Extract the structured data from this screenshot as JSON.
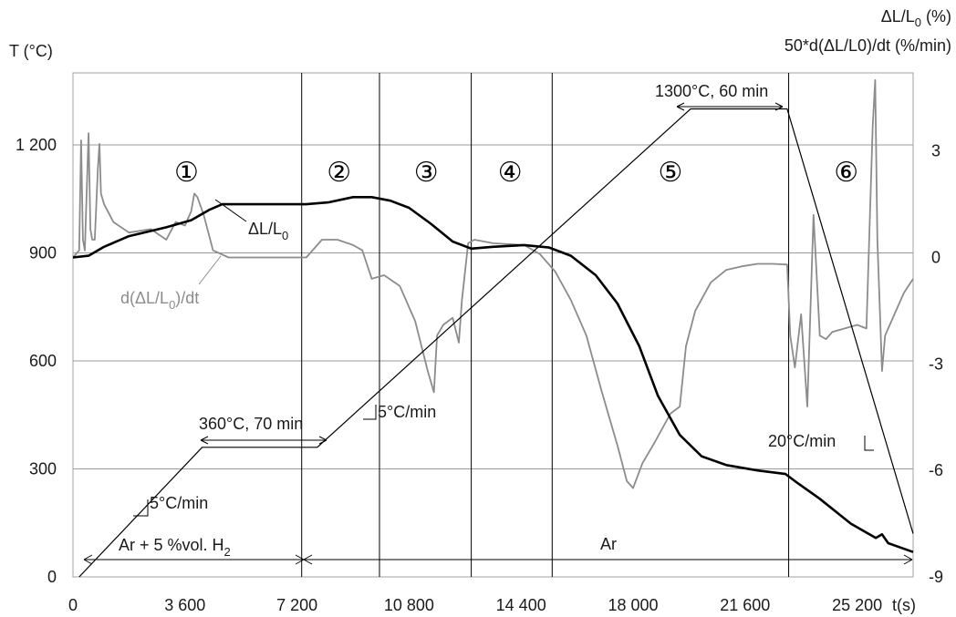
{
  "chart_data": {
    "type": "line",
    "y_left_label": "T (°C)",
    "y_right_label_1": "ΔL/L0 (%)",
    "y_right_label_2": "50*d(ΔL/L0)/dt (%/min)",
    "x_unit_label": "t(s)",
    "xlim": [
      0,
      27000
    ],
    "ylim_left": [
      0,
      1400
    ],
    "ylim_right": [
      -9,
      5.2
    ],
    "x_ticks": [
      {
        "v": 0,
        "label": "0"
      },
      {
        "v": 3600,
        "label": "3 600"
      },
      {
        "v": 7200,
        "label": "7 200"
      },
      {
        "v": 10800,
        "label": "10 800"
      },
      {
        "v": 14400,
        "label": "14 400"
      },
      {
        "v": 18000,
        "label": "18 000"
      },
      {
        "v": 21600,
        "label": "21 600"
      },
      {
        "v": 25200,
        "label": "25 200"
      }
    ],
    "y_left_ticks": [
      {
        "v": 0,
        "label": "0"
      },
      {
        "v": 300,
        "label": "300"
      },
      {
        "v": 600,
        "label": "600"
      },
      {
        "v": 900,
        "label": "900"
      },
      {
        "v": 1200,
        "label": "1 200"
      }
    ],
    "y_right_ticks": [
      {
        "v": -9,
        "label": "-9"
      },
      {
        "v": -6,
        "label": "-6"
      },
      {
        "v": -3,
        "label": "-3"
      },
      {
        "v": 0,
        "label": "0"
      },
      {
        "v": 3,
        "label": "3"
      }
    ],
    "stage_boundaries": [
      7350,
      9850,
      12800,
      15400,
      23000
    ],
    "stages": [
      {
        "label": "①",
        "x": 3650
      },
      {
        "label": "②",
        "x": 8550
      },
      {
        "label": "③",
        "x": 11350
      },
      {
        "label": "④",
        "x": 14050
      },
      {
        "label": "⑤",
        "x": 19200
      },
      {
        "label": "⑥",
        "x": 24850
      }
    ],
    "series": [
      {
        "name": "T",
        "axis": "left",
        "color": "#000000",
        "x": [
          200,
          4150,
          7850,
          19850,
          22950,
          27000
        ],
        "y": [
          0,
          360,
          360,
          1300,
          1300,
          120
        ]
      },
      {
        "name": "ΔL/L0",
        "axis": "right",
        "color": "#000000",
        "x": [
          0,
          500,
          1000,
          1800,
          3000,
          3800,
          4400,
          4800,
          5500,
          6500,
          7500,
          8200,
          9000,
          9600,
          10200,
          10800,
          11500,
          12200,
          12800,
          13500,
          14500,
          15300,
          16000,
          16800,
          17500,
          18200,
          18800,
          19500,
          20200,
          21000,
          22000,
          22900,
          23200,
          24000,
          25000,
          25800,
          26000,
          26200,
          27000
        ],
        "y": [
          0,
          0.05,
          0.3,
          0.6,
          0.85,
          1.05,
          1.35,
          1.5,
          1.5,
          1.5,
          1.5,
          1.55,
          1.7,
          1.7,
          1.6,
          1.4,
          0.95,
          0.45,
          0.25,
          0.3,
          0.35,
          0.28,
          0.05,
          -0.5,
          -1.3,
          -2.5,
          -3.9,
          -5.0,
          -5.6,
          -5.85,
          -6.0,
          -6.1,
          -6.3,
          -6.8,
          -7.5,
          -7.9,
          -7.8,
          -8.05,
          -8.3
        ]
      },
      {
        "name": "d(ΔL/L0)/dt",
        "axis": "right",
        "color": "#8c8c8c",
        "x": [
          0,
          200,
          260,
          320,
          380,
          500,
          560,
          620,
          700,
          800,
          850,
          900,
          1000,
          1300,
          1800,
          2500,
          3000,
          3300,
          3600,
          3800,
          3900,
          4000,
          4200,
          4500,
          5000,
          6000,
          7000,
          7500,
          8000,
          8500,
          9000,
          9300,
          9600,
          10000,
          10500,
          11000,
          11400,
          11600,
          11700,
          11900,
          12200,
          12400,
          12500,
          12700,
          12900,
          13500,
          14500,
          15000,
          15500,
          16000,
          16500,
          17000,
          17500,
          17800,
          18000,
          18300,
          18700,
          19200,
          19500,
          19700,
          20000,
          20500,
          21000,
          21500,
          22000,
          22500,
          22950,
          23050,
          23200,
          23400,
          23600,
          23800,
          24000,
          24200,
          24400,
          24800,
          25200,
          25500,
          25700,
          25780,
          25850,
          26000,
          26100,
          26300,
          26700,
          27000
        ],
        "y": [
          0,
          0.2,
          3.3,
          0.5,
          0.2,
          3.5,
          0.8,
          0.5,
          0.5,
          2.5,
          3.2,
          1.8,
          1.5,
          1.0,
          0.7,
          0.8,
          0.5,
          1.0,
          0.9,
          1.3,
          1.8,
          1.7,
          1.2,
          0.2,
          0.0,
          0.0,
          0.0,
          0.0,
          0.5,
          0.5,
          0.35,
          0.2,
          -0.6,
          -0.5,
          -0.8,
          -1.8,
          -3.2,
          -3.8,
          -2.2,
          -1.9,
          -1.7,
          -2.4,
          -1.2,
          0.4,
          0.5,
          0.4,
          0.35,
          0.1,
          -0.4,
          -1.2,
          -2.2,
          -3.8,
          -5.3,
          -6.3,
          -6.5,
          -5.8,
          -5.2,
          -4.4,
          -4.2,
          -2.5,
          -1.5,
          -0.7,
          -0.35,
          -0.25,
          -0.18,
          -0.18,
          -0.2,
          -2.2,
          -3.1,
          -1.6,
          -4.2,
          1.2,
          -2.2,
          -2.3,
          -2.1,
          -2.0,
          -1.9,
          -2.0,
          3.7,
          5.0,
          0.5,
          -3.2,
          -2.2,
          -1.8,
          -1.0,
          -0.6
        ]
      }
    ],
    "annotations": {
      "delta_label": "ΔL/L",
      "delta_sub": "0",
      "deriv_label_pre": "d(ΔL/L",
      "deriv_sub": "0",
      "deriv_label_post": ")/dt",
      "hold1": "360°C, 70 min",
      "hold2": "1300°C, 60 min",
      "rate1": "5°C/min",
      "rate2": "5°C/min",
      "rate3": "20°C/min",
      "atm1_pre": "Ar + 5 %vol. H",
      "atm1_sub": "2",
      "atm2": "Ar",
      "right_label_1_pre": "ΔL/L",
      "right_label_1_sub": "0",
      "right_label_1_post": " (%)",
      "right_label_2": "50*d(ΔL/L0)/dt (%/min)"
    }
  }
}
